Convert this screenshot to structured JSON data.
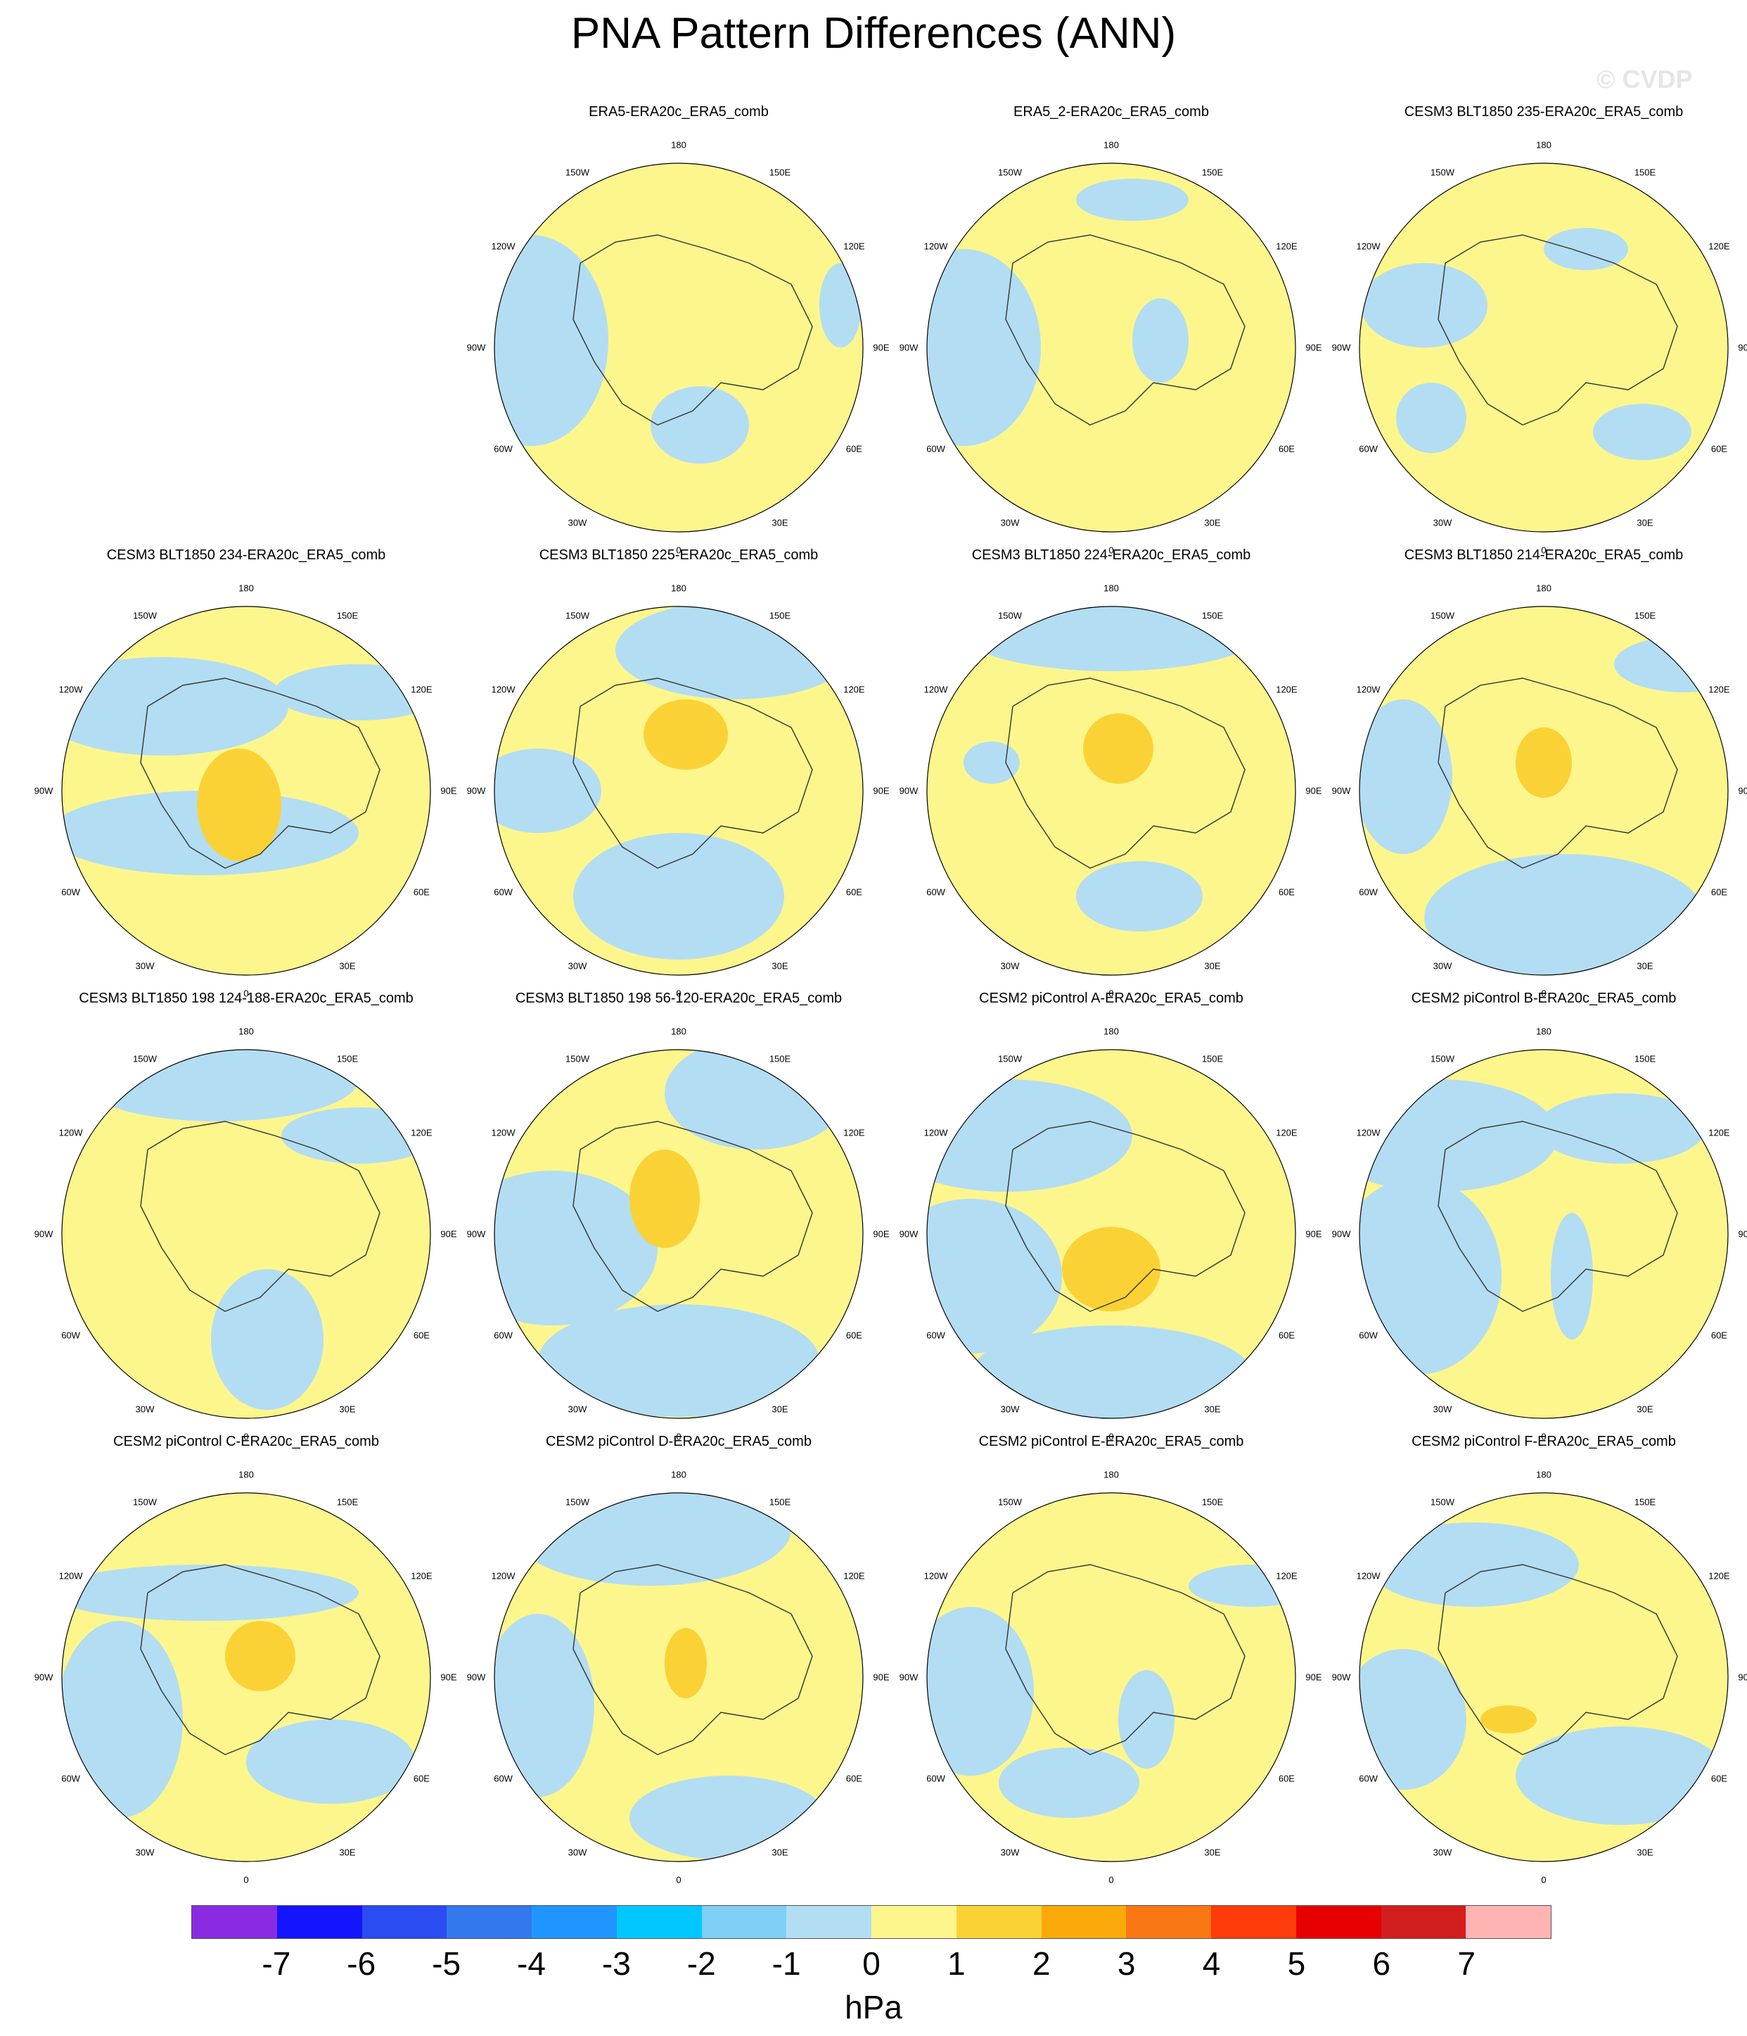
{
  "title": "PNA Pattern Differences (ANN)",
  "watermark": "© CVDP",
  "colors": {
    "zero_to_one": "#fdf68d",
    "minus_one_to_zero": "#b3ddf2",
    "one_to_two": "#fbd235",
    "coast": "#333333"
  },
  "lon_labels": [
    "180",
    "150E",
    "120E",
    "90E",
    "60E",
    "30E",
    "0",
    "30W",
    "60W",
    "90W",
    "120W",
    "150W"
  ],
  "panels": [
    {
      "title": "ERA5-ERA20c_ERA5_comb"
    },
    {
      "title": "ERA5_2-ERA20c_ERA5_comb"
    },
    {
      "title": "CESM3 BLT1850 235-ERA20c_ERA5_comb"
    },
    {
      "title": "CESM3 BLT1850 234-ERA20c_ERA5_comb"
    },
    {
      "title": "CESM3 BLT1850 225-ERA20c_ERA5_comb"
    },
    {
      "title": "CESM3 BLT1850 224-ERA20c_ERA5_comb"
    },
    {
      "title": "CESM3 BLT1850 214-ERA20c_ERA5_comb"
    },
    {
      "title": "CESM3 BLT1850 198 124-188-ERA20c_ERA5_comb"
    },
    {
      "title": "CESM3 BLT1850 198 56-120-ERA20c_ERA5_comb"
    },
    {
      "title": "CESM2 piControl A-ERA20c_ERA5_comb"
    },
    {
      "title": "CESM2 piControl B-ERA20c_ERA5_comb"
    },
    {
      "title": "CESM2 piControl C-ERA20c_ERA5_comb"
    },
    {
      "title": "CESM2 piControl D-ERA20c_ERA5_comb"
    },
    {
      "title": "CESM2 piControl E-ERA20c_ERA5_comb"
    },
    {
      "title": "CESM2 piControl F-ERA20c_ERA5_comb"
    }
  ],
  "colorbar": {
    "colors": [
      "#8a2be2",
      "#1414ff",
      "#2a4cf0",
      "#3478ee",
      "#1f96ff",
      "#00c8ff",
      "#7fcff7",
      "#b3ddf2",
      "#fdf68d",
      "#fbd235",
      "#fba90a",
      "#fa7814",
      "#ff3c0a",
      "#e60000",
      "#d21e1e",
      "#ffb4b4"
    ],
    "ticks": [
      "-7",
      "-6",
      "-5",
      "-4",
      "-3",
      "-2",
      "-1",
      "0",
      "1",
      "2",
      "3",
      "4",
      "5",
      "6",
      "7"
    ],
    "units": "hPa"
  }
}
